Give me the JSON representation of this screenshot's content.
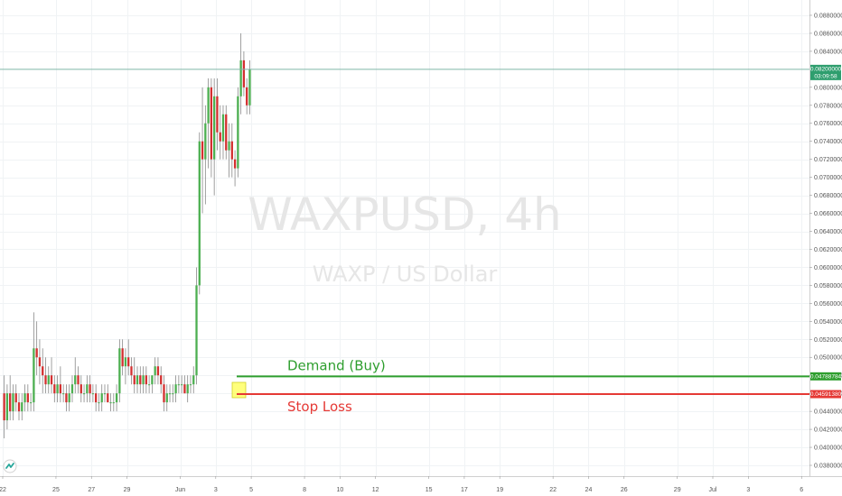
{
  "colors": {
    "up": "#26a69a",
    "up_body": "#4caf50",
    "down": "#d32f2f",
    "wick": "#888888",
    "demand": "#2e9e2e",
    "stop": "#e53935",
    "last_price_line": "#7fb6a8",
    "highlight": "#ffff66"
  },
  "chart_data": {
    "type": "candlestick",
    "watermark_symbol": "WAXPUSD, 4h",
    "watermark_name": "WAXP / US Dollar",
    "y_ticks": [
      "0.03800000",
      "0.04000000",
      "0.04200000",
      "0.04400000",
      "0.04600000",
      "0.04800000",
      "0.05000000",
      "0.05200000",
      "0.05400000",
      "0.05600000",
      "0.05800000",
      "0.06000000",
      "0.06200000",
      "0.06400000",
      "0.06600000",
      "0.06800000",
      "0.07000000",
      "0.07200000",
      "0.07400000",
      "0.07600000",
      "0.07800000",
      "0.08000000",
      "0.08400000",
      "0.08600000",
      "0.08800000"
    ],
    "ylim": [
      0.0372,
      0.0893
    ],
    "x_ticks": [
      {
        "label": "22",
        "day": 0
      },
      {
        "label": "25",
        "day": 3
      },
      {
        "label": "27",
        "day": 5
      },
      {
        "label": "29",
        "day": 7
      },
      {
        "label": "Jun",
        "day": 10
      },
      {
        "label": "3",
        "day": 12
      },
      {
        "label": "5",
        "day": 14
      },
      {
        "label": "8",
        "day": 17
      },
      {
        "label": "10",
        "day": 19
      },
      {
        "label": "12",
        "day": 21
      },
      {
        "label": "15",
        "day": 24
      },
      {
        "label": "17",
        "day": 26
      },
      {
        "label": "19",
        "day": 28
      },
      {
        "label": "22",
        "day": 31
      },
      {
        "label": "24",
        "day": 33
      },
      {
        "label": "26",
        "day": 35
      },
      {
        "label": "29",
        "day": 38
      },
      {
        "label": "Jul",
        "day": 40
      },
      {
        "label": "3",
        "day": 42
      },
      {
        "label": "6",
        "day": 45
      }
    ],
    "last_price": {
      "value": 0.082,
      "label": "0.08200000",
      "countdown": "03:09:58"
    },
    "demand_zone": {
      "label": "Demand (Buy)",
      "value": 0.04788784,
      "tag": "0.04788784"
    },
    "stop_loss": {
      "label": "Stop Loss",
      "value": 0.0459138,
      "tag": "0.04591380"
    },
    "candles": [
      [
        0.046,
        0.048,
        0.041,
        0.043
      ],
      [
        0.043,
        0.047,
        0.042,
        0.046
      ],
      [
        0.046,
        0.048,
        0.043,
        0.044
      ],
      [
        0.044,
        0.047,
        0.043,
        0.046
      ],
      [
        0.046,
        0.047,
        0.044,
        0.045
      ],
      [
        0.045,
        0.046,
        0.043,
        0.044
      ],
      [
        0.044,
        0.046,
        0.043,
        0.045
      ],
      [
        0.045,
        0.047,
        0.044,
        0.046
      ],
      [
        0.046,
        0.047,
        0.044,
        0.045
      ],
      [
        0.045,
        0.046,
        0.044,
        0.045
      ],
      [
        0.045,
        0.055,
        0.044,
        0.051
      ],
      [
        0.051,
        0.054,
        0.048,
        0.05
      ],
      [
        0.05,
        0.052,
        0.047,
        0.049
      ],
      [
        0.049,
        0.051,
        0.046,
        0.048
      ],
      [
        0.048,
        0.05,
        0.046,
        0.047
      ],
      [
        0.047,
        0.049,
        0.046,
        0.048
      ],
      [
        0.048,
        0.05,
        0.046,
        0.047
      ],
      [
        0.047,
        0.048,
        0.045,
        0.046
      ],
      [
        0.046,
        0.048,
        0.045,
        0.047
      ],
      [
        0.047,
        0.049,
        0.045,
        0.046
      ],
      [
        0.046,
        0.047,
        0.045,
        0.046
      ],
      [
        0.046,
        0.047,
        0.044,
        0.045
      ],
      [
        0.045,
        0.047,
        0.044,
        0.046
      ],
      [
        0.046,
        0.048,
        0.045,
        0.047
      ],
      [
        0.047,
        0.05,
        0.046,
        0.048
      ],
      [
        0.048,
        0.049,
        0.046,
        0.047
      ],
      [
        0.047,
        0.048,
        0.045,
        0.046
      ],
      [
        0.046,
        0.047,
        0.045,
        0.046
      ],
      [
        0.046,
        0.048,
        0.045,
        0.047
      ],
      [
        0.047,
        0.048,
        0.045,
        0.046
      ],
      [
        0.046,
        0.047,
        0.045,
        0.046
      ],
      [
        0.046,
        0.047,
        0.044,
        0.045
      ],
      [
        0.045,
        0.046,
        0.044,
        0.045
      ],
      [
        0.045,
        0.047,
        0.044,
        0.046
      ],
      [
        0.046,
        0.047,
        0.045,
        0.046
      ],
      [
        0.046,
        0.047,
        0.045,
        0.045
      ],
      [
        0.045,
        0.046,
        0.044,
        0.045
      ],
      [
        0.045,
        0.046,
        0.044,
        0.045
      ],
      [
        0.045,
        0.047,
        0.044,
        0.046
      ],
      [
        0.046,
        0.052,
        0.045,
        0.051
      ],
      [
        0.051,
        0.052,
        0.048,
        0.049
      ],
      [
        0.049,
        0.051,
        0.047,
        0.05
      ],
      [
        0.05,
        0.052,
        0.048,
        0.049
      ],
      [
        0.049,
        0.05,
        0.047,
        0.048
      ],
      [
        0.048,
        0.05,
        0.046,
        0.047
      ],
      [
        0.047,
        0.049,
        0.046,
        0.048
      ],
      [
        0.048,
        0.049,
        0.046,
        0.047
      ],
      [
        0.047,
        0.049,
        0.046,
        0.048
      ],
      [
        0.048,
        0.049,
        0.046,
        0.047
      ],
      [
        0.047,
        0.048,
        0.046,
        0.047
      ],
      [
        0.047,
        0.048,
        0.046,
        0.048
      ],
      [
        0.048,
        0.05,
        0.047,
        0.049
      ],
      [
        0.049,
        0.05,
        0.047,
        0.048
      ],
      [
        0.048,
        0.049,
        0.046,
        0.047
      ],
      [
        0.047,
        0.048,
        0.044,
        0.045
      ],
      [
        0.045,
        0.047,
        0.044,
        0.046
      ],
      [
        0.046,
        0.047,
        0.045,
        0.046
      ],
      [
        0.046,
        0.047,
        0.045,
        0.046
      ],
      [
        0.046,
        0.048,
        0.045,
        0.047
      ],
      [
        0.047,
        0.048,
        0.046,
        0.047
      ],
      [
        0.047,
        0.048,
        0.046,
        0.047
      ],
      [
        0.047,
        0.048,
        0.046,
        0.046
      ],
      [
        0.046,
        0.048,
        0.045,
        0.047
      ],
      [
        0.047,
        0.048,
        0.046,
        0.047
      ],
      [
        0.047,
        0.049,
        0.046,
        0.048
      ],
      [
        0.048,
        0.06,
        0.047,
        0.058
      ],
      [
        0.058,
        0.075,
        0.057,
        0.074
      ],
      [
        0.074,
        0.08,
        0.066,
        0.072
      ],
      [
        0.072,
        0.078,
        0.067,
        0.076
      ],
      [
        0.076,
        0.081,
        0.071,
        0.08
      ],
      [
        0.08,
        0.081,
        0.07,
        0.072
      ],
      [
        0.072,
        0.081,
        0.068,
        0.079
      ],
      [
        0.079,
        0.081,
        0.073,
        0.075
      ],
      [
        0.075,
        0.078,
        0.072,
        0.074
      ],
      [
        0.074,
        0.078,
        0.072,
        0.077
      ],
      [
        0.077,
        0.078,
        0.072,
        0.073
      ],
      [
        0.073,
        0.076,
        0.07,
        0.074
      ],
      [
        0.074,
        0.076,
        0.07,
        0.072
      ],
      [
        0.072,
        0.073,
        0.069,
        0.071
      ],
      [
        0.071,
        0.08,
        0.07,
        0.079
      ],
      [
        0.079,
        0.086,
        0.077,
        0.083
      ],
      [
        0.083,
        0.084,
        0.079,
        0.08
      ],
      [
        0.08,
        0.081,
        0.077,
        0.078
      ],
      [
        0.078,
        0.083,
        0.077,
        0.082
      ]
    ]
  }
}
